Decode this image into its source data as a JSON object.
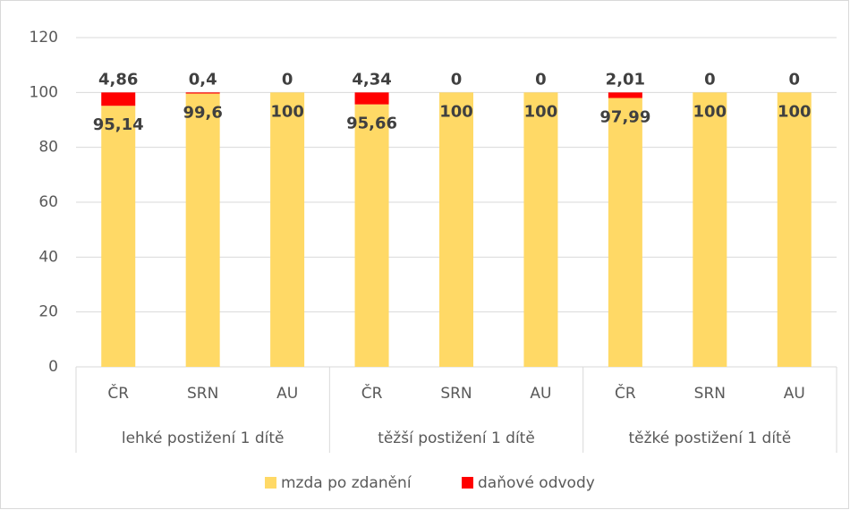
{
  "chart_data": {
    "type": "stacked_bar",
    "categories": [
      "ČR",
      "SRN",
      "AU",
      "ČR",
      "SRN",
      "AU",
      "ČR",
      "SRN",
      "AU"
    ],
    "groups": [
      "lehké postižení 1 dítě",
      "těžší postižení 1 dítě",
      "těžké postižení 1 dítě"
    ],
    "series": [
      {
        "name": "mzda po zdanění",
        "color": "#ffd966",
        "values": [
          95.14,
          99.6,
          100,
          95.66,
          100,
          100,
          97.99,
          100,
          100
        ],
        "value_labels": [
          "95,14",
          "99,6",
          "100",
          "95,66",
          "100",
          "100",
          "97,99",
          "100",
          "100"
        ]
      },
      {
        "name": "daňové odvody",
        "color": "#ff0000",
        "values": [
          4.86,
          0.4,
          0,
          4.34,
          0,
          0,
          2.01,
          0,
          0
        ],
        "value_labels": [
          "4,86",
          "0,4",
          "0",
          "4,34",
          "0",
          "0",
          "2,01",
          "0",
          "0"
        ]
      }
    ],
    "ylim": [
      0,
      120
    ],
    "yticks": [
      0,
      20,
      40,
      60,
      80,
      100,
      120
    ],
    "grid": true,
    "legend": "bottom"
  }
}
